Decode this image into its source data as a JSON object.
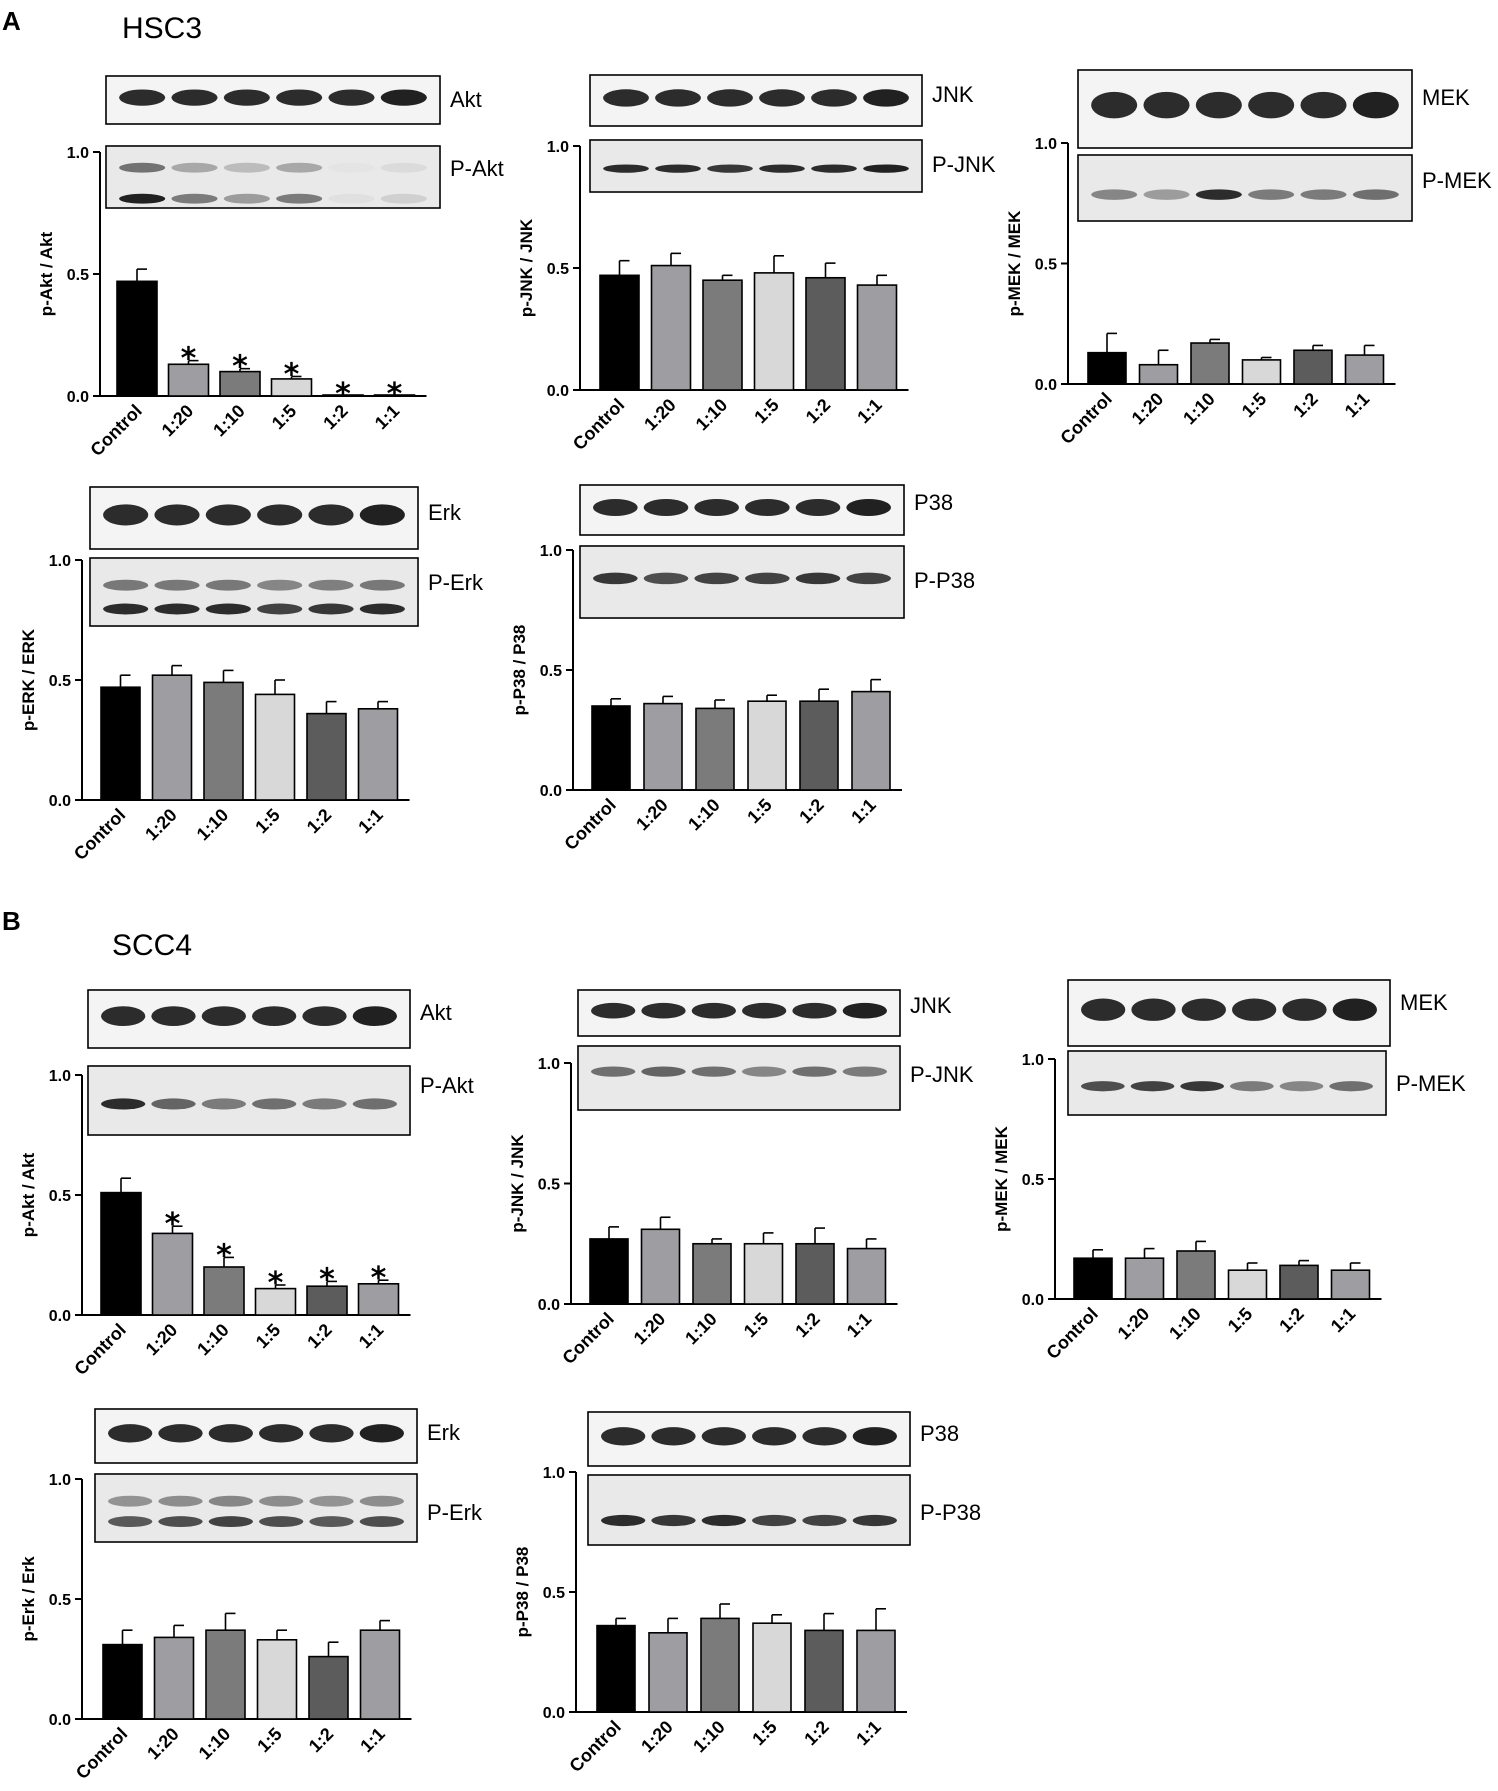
{
  "panels": [
    {
      "letter": "A",
      "cell_line": "HSC3"
    },
    {
      "letter": "B",
      "cell_line": "SCC4"
    }
  ],
  "colors": [
    "#000000",
    "#9d9da2",
    "#7b7b7b",
    "#d8d8d8",
    "#5c5c5c",
    "#9d9da2"
  ],
  "chart_data": [
    {
      "id": "hsc3-akt",
      "panel": 0,
      "type": "bar",
      "categories": [
        "Control",
        "1:20",
        "1:10",
        "1:5",
        "1:2",
        "1:1"
      ],
      "values": [
        0.47,
        0.13,
        0.1,
        0.07,
        0.0,
        0.0
      ],
      "errors": [
        0.05,
        0.015,
        0.012,
        0.01,
        0.0,
        0.0
      ],
      "significant": [
        false,
        true,
        true,
        true,
        true,
        true
      ],
      "ylabel": "p-Akt / Akt",
      "ylim": [
        0,
        1.0
      ],
      "yticks": [
        "0.0",
        "0.5",
        "1.0"
      ],
      "blots": [
        "Akt",
        "P-Akt"
      ]
    },
    {
      "id": "hsc3-jnk",
      "panel": 0,
      "type": "bar",
      "categories": [
        "Control",
        "1:20",
        "1:10",
        "1:5",
        "1:2",
        "1:1"
      ],
      "values": [
        0.47,
        0.51,
        0.45,
        0.48,
        0.46,
        0.43
      ],
      "errors": [
        0.06,
        0.05,
        0.02,
        0.07,
        0.06,
        0.04
      ],
      "significant": [
        false,
        false,
        false,
        false,
        false,
        false
      ],
      "ylabel": "p-JNK / JNK",
      "ylim": [
        0,
        1.0
      ],
      "yticks": [
        "0.0",
        "0.5",
        "1.0"
      ],
      "blots": [
        "JNK",
        "P-JNK"
      ]
    },
    {
      "id": "hsc3-mek",
      "panel": 0,
      "type": "bar",
      "categories": [
        "Control",
        "1:20",
        "1:10",
        "1:5",
        "1:2",
        "1:1"
      ],
      "values": [
        0.13,
        0.08,
        0.17,
        0.1,
        0.14,
        0.12
      ],
      "errors": [
        0.08,
        0.06,
        0.015,
        0.01,
        0.02,
        0.04
      ],
      "significant": [
        false,
        false,
        false,
        false,
        false,
        false
      ],
      "ylabel": "p-MEK / MEK",
      "ylim": [
        0,
        1.0
      ],
      "yticks": [
        "0.0",
        "0.5",
        "1.0"
      ],
      "blots": [
        "MEK",
        "P-MEK"
      ]
    },
    {
      "id": "hsc3-erk",
      "panel": 0,
      "type": "bar",
      "categories": [
        "Control",
        "1:20",
        "1:10",
        "1:5",
        "1:2",
        "1:1"
      ],
      "values": [
        0.47,
        0.52,
        0.49,
        0.44,
        0.36,
        0.38
      ],
      "errors": [
        0.05,
        0.04,
        0.05,
        0.06,
        0.05,
        0.03
      ],
      "significant": [
        false,
        false,
        false,
        false,
        false,
        false
      ],
      "ylabel": "p-ERK / ERK",
      "ylim": [
        0,
        1.0
      ],
      "yticks": [
        "0.0",
        "0.5",
        "1.0"
      ],
      "blots": [
        "Erk",
        "P-Erk"
      ]
    },
    {
      "id": "hsc3-p38",
      "panel": 0,
      "type": "bar",
      "categories": [
        "Control",
        "1:20",
        "1:10",
        "1:5",
        "1:2",
        "1:1"
      ],
      "values": [
        0.35,
        0.36,
        0.34,
        0.37,
        0.37,
        0.41
      ],
      "errors": [
        0.03,
        0.03,
        0.035,
        0.025,
        0.05,
        0.05
      ],
      "significant": [
        false,
        false,
        false,
        false,
        false,
        false
      ],
      "ylabel": "p-P38 / P38",
      "ylim": [
        0,
        1.0
      ],
      "yticks": [
        "0.0",
        "0.5",
        "1.0"
      ],
      "blots": [
        "P38",
        "P-P38"
      ]
    },
    {
      "id": "scc4-akt",
      "panel": 1,
      "type": "bar",
      "categories": [
        "Control",
        "1:20",
        "1:10",
        "1:5",
        "1:2",
        "1:1"
      ],
      "values": [
        0.51,
        0.34,
        0.2,
        0.11,
        0.12,
        0.13
      ],
      "errors": [
        0.06,
        0.03,
        0.04,
        0.015,
        0.02,
        0.015
      ],
      "significant": [
        false,
        true,
        true,
        true,
        true,
        true
      ],
      "ylabel": "p-Akt / Akt",
      "ylim": [
        0,
        1.0
      ],
      "yticks": [
        "0.0",
        "0.5",
        "1.0"
      ],
      "blots": [
        "Akt",
        "P-Akt"
      ]
    },
    {
      "id": "scc4-jnk",
      "panel": 1,
      "type": "bar",
      "categories": [
        "Control",
        "1:20",
        "1:10",
        "1:5",
        "1:2",
        "1:1"
      ],
      "values": [
        0.27,
        0.31,
        0.25,
        0.25,
        0.25,
        0.23
      ],
      "errors": [
        0.05,
        0.05,
        0.02,
        0.045,
        0.065,
        0.04
      ],
      "significant": [
        false,
        false,
        false,
        false,
        false,
        false
      ],
      "ylabel": "p-JNK / JNK",
      "ylim": [
        0,
        1.0
      ],
      "yticks": [
        "0.0",
        "0.5",
        "1.0"
      ],
      "blots": [
        "JNK",
        "P-JNK"
      ]
    },
    {
      "id": "scc4-mek",
      "panel": 1,
      "type": "bar",
      "categories": [
        "Control",
        "1:20",
        "1:10",
        "1:5",
        "1:2",
        "1:1"
      ],
      "values": [
        0.17,
        0.17,
        0.2,
        0.12,
        0.14,
        0.12
      ],
      "errors": [
        0.035,
        0.04,
        0.04,
        0.03,
        0.02,
        0.03
      ],
      "significant": [
        false,
        false,
        false,
        false,
        false,
        false
      ],
      "ylabel": "p-MEK / MEK",
      "ylim": [
        0,
        1.0
      ],
      "yticks": [
        "0.0",
        "0.5",
        "1.0"
      ],
      "blots": [
        "MEK",
        "P-MEK"
      ]
    },
    {
      "id": "scc4-erk",
      "panel": 1,
      "type": "bar",
      "categories": [
        "Control",
        "1:20",
        "1:10",
        "1:5",
        "1:2",
        "1:1"
      ],
      "values": [
        0.31,
        0.34,
        0.37,
        0.33,
        0.26,
        0.37
      ],
      "errors": [
        0.06,
        0.05,
        0.07,
        0.04,
        0.06,
        0.04
      ],
      "significant": [
        false,
        false,
        false,
        false,
        false,
        false
      ],
      "ylabel": "p-Erk / Erk",
      "ylim": [
        0,
        1.0
      ],
      "yticks": [
        "0.0",
        "0.5",
        "1.0"
      ],
      "blots": [
        "Erk",
        "P-Erk"
      ]
    },
    {
      "id": "scc4-p38",
      "panel": 1,
      "type": "bar",
      "categories": [
        "Control",
        "1:20",
        "1:10",
        "1:5",
        "1:2",
        "1:1"
      ],
      "values": [
        0.36,
        0.33,
        0.39,
        0.37,
        0.34,
        0.34
      ],
      "errors": [
        0.03,
        0.06,
        0.06,
        0.035,
        0.07,
        0.09
      ],
      "significant": [
        false,
        false,
        false,
        false,
        false,
        false
      ],
      "ylabel": "p-P38 / P38",
      "ylim": [
        0,
        1.0
      ],
      "yticks": [
        "0.0",
        "0.5",
        "1.0"
      ],
      "blots": [
        "P38",
        "P-P38"
      ]
    }
  ]
}
